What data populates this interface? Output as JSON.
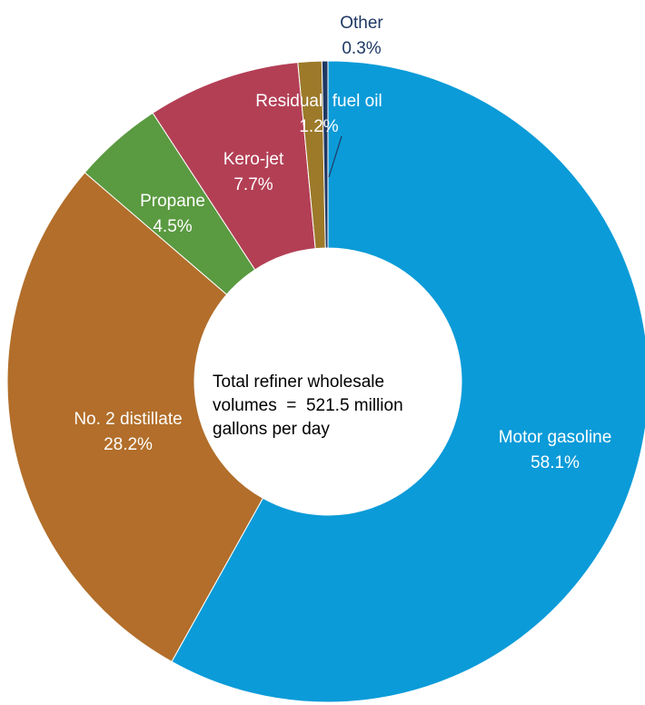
{
  "chart_data": {
    "type": "pie",
    "donut": true,
    "title": "",
    "center_text": [
      "Total refiner wholesale",
      "volumes  =  521.5 million",
      "gallons per day"
    ],
    "slices": [
      {
        "label": "Motor gasoline",
        "value": 58.1,
        "value_label": "58.1%",
        "color": "#0b9bd8"
      },
      {
        "label": "No. 2 distillate",
        "value": 28.2,
        "value_label": "28.2%",
        "color": "#b26e2a"
      },
      {
        "label": "Propane",
        "value": 4.5,
        "value_label": "4.5%",
        "color": "#5a9a40"
      },
      {
        "label": "Kero-jet",
        "value": 7.7,
        "value_label": "7.7%",
        "color": "#b33f55"
      },
      {
        "label": "Residual  fuel oil",
        "value": 1.2,
        "value_label": "1.2%",
        "color": "#9c7a2a"
      },
      {
        "label": "Other",
        "value": 0.3,
        "value_label": "0.3%",
        "color": "#1f3864"
      }
    ]
  }
}
